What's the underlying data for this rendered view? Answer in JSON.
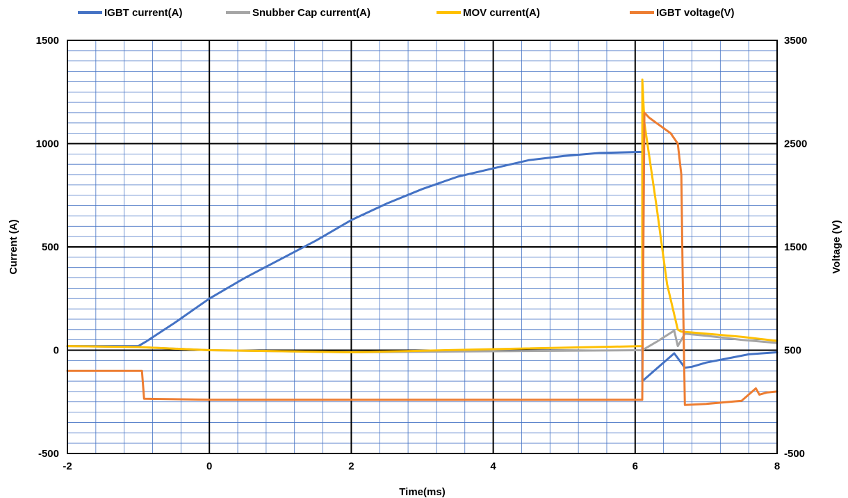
{
  "chart_data": {
    "type": "line",
    "title": "",
    "xlabel": "Time(ms)",
    "ylabel": "Current (A)",
    "y2label": "Voltage (V)",
    "xlim": [
      -2,
      8
    ],
    "ylim": [
      -500,
      1500
    ],
    "y2lim": [
      -500,
      3500
    ],
    "x_ticks": [
      "-2",
      "0",
      "2",
      "4",
      "6",
      "8"
    ],
    "y_ticks": [
      "-500",
      "0",
      "500",
      "1000",
      "1500"
    ],
    "y2_ticks": [
      "-500",
      "500",
      "1500",
      "2500",
      "3500"
    ],
    "grid": true,
    "legend_position": "top",
    "series": [
      {
        "name": "IGBT current(A)",
        "axis": "left",
        "color": "#4472C4",
        "points": [
          [
            -2,
            20
          ],
          [
            -1,
            20
          ],
          [
            -0.9,
            40
          ],
          [
            -0.5,
            130
          ],
          [
            0,
            250
          ],
          [
            0.5,
            350
          ],
          [
            1,
            440
          ],
          [
            1.5,
            530
          ],
          [
            2,
            630
          ],
          [
            2.5,
            710
          ],
          [
            3,
            780
          ],
          [
            3.5,
            840
          ],
          [
            4,
            880
          ],
          [
            4.5,
            920
          ],
          [
            5,
            940
          ],
          [
            5.5,
            955
          ],
          [
            6.1,
            960
          ],
          [
            6.101,
            -150
          ],
          [
            6.3,
            -90
          ],
          [
            6.55,
            -15
          ],
          [
            6.7,
            -85
          ],
          [
            6.8,
            -80
          ],
          [
            7,
            -60
          ],
          [
            7.3,
            -40
          ],
          [
            7.6,
            -20
          ],
          [
            8,
            -10
          ]
        ]
      },
      {
        "name": "Snubber Cap current(A)",
        "axis": "left",
        "color": "#A5A5A5",
        "points": [
          [
            -2,
            20
          ],
          [
            -1,
            15
          ],
          [
            0,
            0
          ],
          [
            2,
            -10
          ],
          [
            4,
            -5
          ],
          [
            6.1,
            0
          ],
          [
            6.3,
            40
          ],
          [
            6.55,
            95
          ],
          [
            6.6,
            20
          ],
          [
            6.7,
            80
          ],
          [
            7,
            70
          ],
          [
            7.5,
            50
          ],
          [
            8,
            35
          ]
        ]
      },
      {
        "name": "MOV current(A)",
        "axis": "left",
        "color": "#FFC000",
        "points": [
          [
            -2,
            20
          ],
          [
            -1,
            15
          ],
          [
            0,
            0
          ],
          [
            2,
            -10
          ],
          [
            4,
            5
          ],
          [
            6.1,
            20
          ],
          [
            6.101,
            1310
          ],
          [
            6.13,
            1100
          ],
          [
            6.3,
            700
          ],
          [
            6.45,
            320
          ],
          [
            6.6,
            100
          ],
          [
            6.65,
            90
          ],
          [
            7,
            80
          ],
          [
            7.5,
            65
          ],
          [
            8,
            45
          ]
        ]
      },
      {
        "name": "IGBT voltage(V)",
        "axis": "right",
        "color": "#ED7D31",
        "points": [
          [
            -2,
            300
          ],
          [
            -1,
            300
          ],
          [
            -0.95,
            300
          ],
          [
            -0.92,
            30
          ],
          [
            0,
            20
          ],
          [
            2,
            20
          ],
          [
            4,
            20
          ],
          [
            6.1,
            20
          ],
          [
            6.13,
            2800
          ],
          [
            6.2,
            2750
          ],
          [
            6.3,
            2700
          ],
          [
            6.5,
            2600
          ],
          [
            6.6,
            2500
          ],
          [
            6.65,
            2200
          ],
          [
            6.67,
            1200
          ],
          [
            6.7,
            -30
          ],
          [
            7,
            -20
          ],
          [
            7.5,
            10
          ],
          [
            7.65,
            100
          ],
          [
            7.7,
            130
          ],
          [
            7.75,
            70
          ],
          [
            7.85,
            90
          ],
          [
            8,
            100
          ]
        ]
      }
    ]
  }
}
